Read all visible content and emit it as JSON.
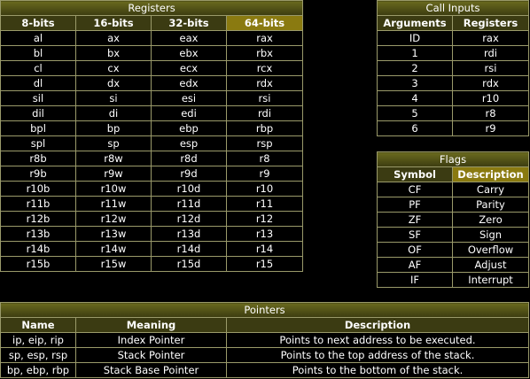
{
  "registers": {
    "title": "Registers",
    "headers": [
      "8-bits",
      "16-bits",
      "32-bits",
      "64-bits"
    ],
    "rows": [
      [
        "al",
        "ax",
        "eax",
        "rax"
      ],
      [
        "bl",
        "bx",
        "ebx",
        "rbx"
      ],
      [
        "cl",
        "cx",
        "ecx",
        "rcx"
      ],
      [
        "dl",
        "dx",
        "edx",
        "rdx"
      ],
      [
        "sil",
        "si",
        "esi",
        "rsi"
      ],
      [
        "dil",
        "di",
        "edi",
        "rdi"
      ],
      [
        "bpl",
        "bp",
        "ebp",
        "rbp"
      ],
      [
        "spl",
        "sp",
        "esp",
        "rsp"
      ],
      [
        "r8b",
        "r8w",
        "r8d",
        "r8"
      ],
      [
        "r9b",
        "r9w",
        "r9d",
        "r9"
      ],
      [
        "r10b",
        "r10w",
        "r10d",
        "r10"
      ],
      [
        "r11b",
        "r11w",
        "r11d",
        "r11"
      ],
      [
        "r12b",
        "r12w",
        "r12d",
        "r12"
      ],
      [
        "r13b",
        "r13w",
        "r13d",
        "r13"
      ],
      [
        "r14b",
        "r14w",
        "r14d",
        "r14"
      ],
      [
        "r15b",
        "r15w",
        "r15d",
        "r15"
      ]
    ]
  },
  "call_inputs": {
    "title": "Call Inputs",
    "headers": [
      "Arguments",
      "Registers"
    ],
    "rows": [
      [
        "ID",
        "rax"
      ],
      [
        "1",
        "rdi"
      ],
      [
        "2",
        "rsi"
      ],
      [
        "3",
        "rdx"
      ],
      [
        "4",
        "r10"
      ],
      [
        "5",
        "r8"
      ],
      [
        "6",
        "r9"
      ]
    ]
  },
  "flags": {
    "title": "Flags",
    "headers": [
      "Symbol",
      "Description"
    ],
    "rows": [
      [
        "CF",
        "Carry"
      ],
      [
        "PF",
        "Parity"
      ],
      [
        "ZF",
        "Zero"
      ],
      [
        "SF",
        "Sign"
      ],
      [
        "OF",
        "Overflow"
      ],
      [
        "AF",
        "Adjust"
      ],
      [
        "IF",
        "Interrupt"
      ]
    ]
  },
  "pointers": {
    "title": "Pointers",
    "headers": [
      "Name",
      "Meaning",
      "Description"
    ],
    "rows": [
      [
        "ip, eip, rip",
        "Index Pointer",
        "Points to next address to be executed."
      ],
      [
        "sp, esp, rsp",
        "Stack Pointer",
        "Points to the top address of the stack."
      ],
      [
        "bp, ebp, rbp",
        "Stack Base Pointer",
        "Points to the bottom of the stack."
      ]
    ]
  },
  "colors": {
    "title_bar": "#4a4a14",
    "header_bg": "#3b3b12",
    "highlight_header_bg": "#8a7a10",
    "grid": "#9a9a6a"
  }
}
